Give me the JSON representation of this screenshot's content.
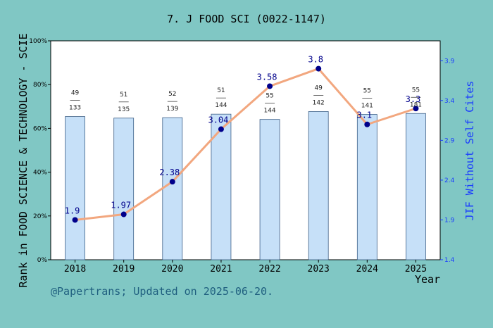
{
  "chart_data": {
    "type": "bar",
    "title": "7. J FOOD SCI (0022-1147)",
    "xlabel": "Year",
    "ylabel_left": "Rank in FOOD SCIENCE & TECHNOLOGY - SCIE",
    "ylabel_right": "JIF Without Self Cites",
    "categories": [
      "2018",
      "2019",
      "2020",
      "2021",
      "2022",
      "2023",
      "2024",
      "2025"
    ],
    "y_left_ticks": [
      "0%",
      "20%",
      "40%",
      "60%",
      "80%",
      "100%"
    ],
    "y_left_range": [
      0,
      100
    ],
    "y_right_ticks": [
      "1.4",
      "1.9",
      "2.4",
      "2.9",
      "3.4",
      "3.9"
    ],
    "y_right_range": [
      1.4,
      4.15
    ],
    "bar_values": [
      65.4,
      64.7,
      64.9,
      66.5,
      64.1,
      67.7,
      66.4,
      66.8
    ],
    "rank_labels": [
      {
        "rank": "49",
        "total": "133"
      },
      {
        "rank": "51",
        "total": "135"
      },
      {
        "rank": "52",
        "total": "139"
      },
      {
        "rank": "51",
        "total": "144"
      },
      {
        "rank": "55",
        "total": "144"
      },
      {
        "rank": "49",
        "total": "142"
      },
      {
        "rank": "55",
        "total": "141"
      },
      {
        "rank": "55",
        "total": "181"
      }
    ],
    "line_values": [
      1.9,
      1.97,
      2.38,
      3.04,
      3.58,
      3.8,
      3.1,
      3.3
    ],
    "line_labels": [
      "1.9",
      "1.97",
      "2.38",
      "3.04",
      "3.58",
      "3.8",
      "3.1",
      "3.3"
    ],
    "grid": false,
    "colors": {
      "bar_fill": "#c6e0f8",
      "bar_stroke": "#3d5f86",
      "line": "#f2a77f",
      "marker": "#00008b",
      "left_axis": "#000000",
      "right_axis": "#1a3cff",
      "background": "#80c7c4",
      "plot_bg": "#ffffff"
    }
  },
  "footer": {
    "credit": "@Papertrans; Updated on 2025-06-20."
  }
}
